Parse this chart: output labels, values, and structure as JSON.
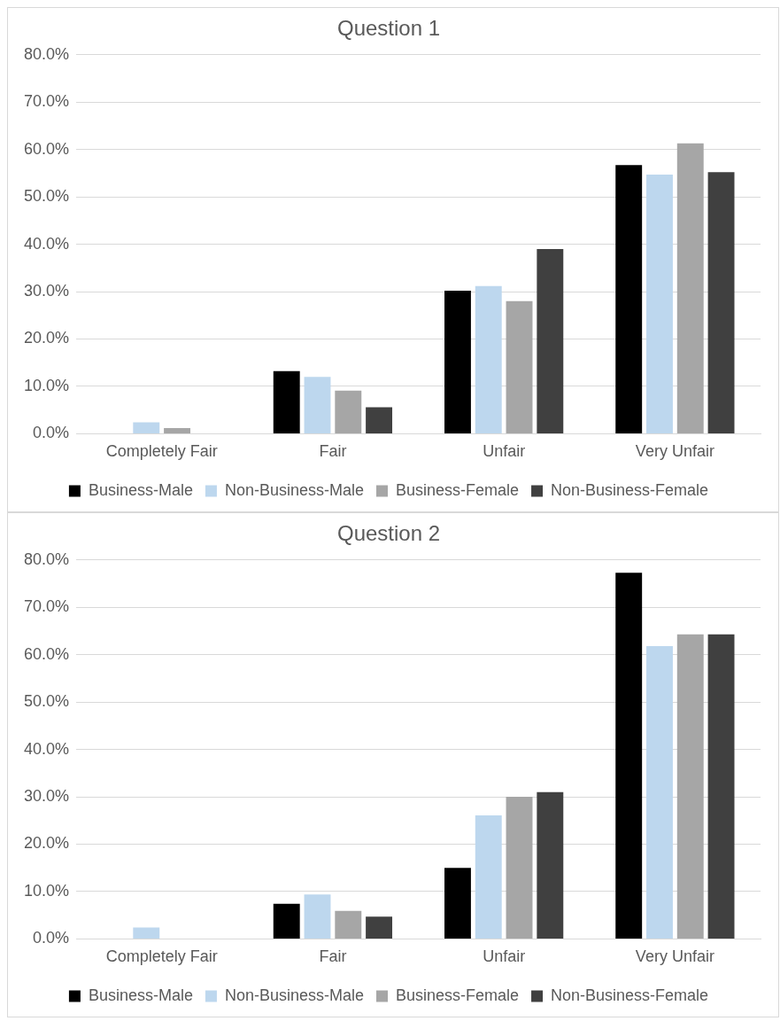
{
  "chart_data": [
    {
      "type": "bar",
      "title": "Question 1",
      "categories": [
        "Completely Fair",
        "Fair",
        "Unfair",
        "Very Unfair"
      ],
      "series": [
        {
          "name": "Business-Male",
          "color": "#000000",
          "values": [
            0,
            13.2,
            30.2,
            56.7
          ]
        },
        {
          "name": "Non-Business-Male",
          "color": "#bdd7ee",
          "values": [
            2.4,
            12.0,
            31.2,
            54.7
          ]
        },
        {
          "name": "Business-Female",
          "color": "#a6a6a6",
          "values": [
            1.2,
            9.1,
            28.0,
            61.3
          ]
        },
        {
          "name": "Non-Business-Female",
          "color": "#404040",
          "values": [
            0,
            5.6,
            39.0,
            55.2
          ]
        }
      ],
      "ylim": [
        0,
        80
      ],
      "yticks": [
        {
          "value": 0,
          "label": "0.0%"
        },
        {
          "value": 10,
          "label": "10.0%"
        },
        {
          "value": 20,
          "label": "20.0%"
        },
        {
          "value": 30,
          "label": "30.0%"
        },
        {
          "value": 40,
          "label": "40.0%"
        },
        {
          "value": 50,
          "label": "50.0%"
        },
        {
          "value": 60,
          "label": "60.0%"
        },
        {
          "value": 70,
          "label": "70.0%"
        },
        {
          "value": 80,
          "label": "80.0%"
        }
      ],
      "grid": "y",
      "legend": "bottom"
    },
    {
      "type": "bar",
      "title": "Question 2",
      "categories": [
        "Completely Fair",
        "Fair",
        "Unfair",
        "Very Unfair"
      ],
      "series": [
        {
          "name": "Business-Male",
          "color": "#000000",
          "values": [
            0,
            7.4,
            15.0,
            77.3
          ]
        },
        {
          "name": "Non-Business-Male",
          "color": "#bdd7ee",
          "values": [
            2.4,
            9.4,
            26.1,
            61.8
          ]
        },
        {
          "name": "Business-Female",
          "color": "#a6a6a6",
          "values": [
            0,
            5.9,
            30.0,
            64.3
          ]
        },
        {
          "name": "Non-Business-Female",
          "color": "#404040",
          "values": [
            0,
            4.7,
            31.0,
            64.3
          ]
        }
      ],
      "ylim": [
        0,
        80
      ],
      "yticks": [
        {
          "value": 0,
          "label": "0.0%"
        },
        {
          "value": 10,
          "label": "10.0%"
        },
        {
          "value": 20,
          "label": "20.0%"
        },
        {
          "value": 30,
          "label": "30.0%"
        },
        {
          "value": 40,
          "label": "40.0%"
        },
        {
          "value": 50,
          "label": "50.0%"
        },
        {
          "value": 60,
          "label": "60.0%"
        },
        {
          "value": 70,
          "label": "70.0%"
        },
        {
          "value": 80,
          "label": "80.0%"
        }
      ],
      "grid": "y",
      "legend": "bottom"
    }
  ]
}
